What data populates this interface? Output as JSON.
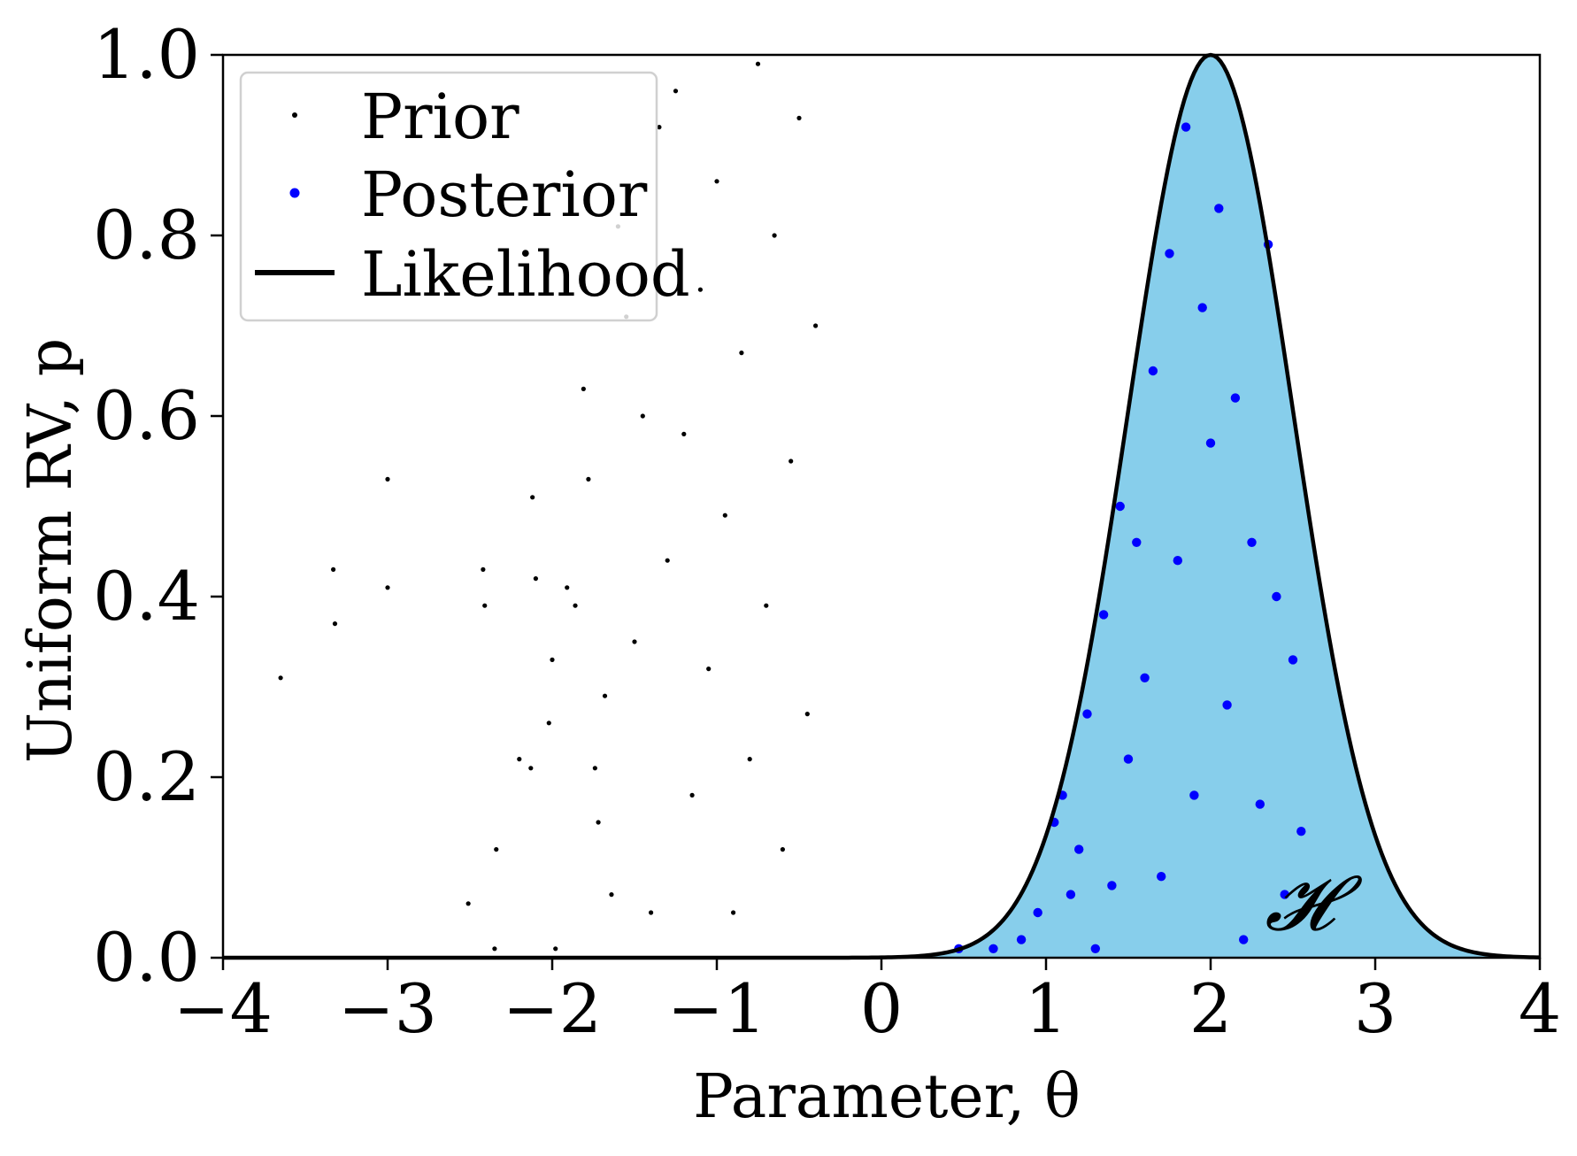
{
  "chart_data": {
    "type": "scatter",
    "title": "",
    "xlabel": "Parameter, θ",
    "ylabel": "Uniform RV, p",
    "xlim": [
      -4,
      4
    ],
    "ylim": [
      0,
      1
    ],
    "x_ticks": [
      -4,
      -3,
      -2,
      -1,
      0,
      1,
      2,
      3,
      4
    ],
    "x_tick_labels": [
      "−4",
      "−3",
      "−2",
      "−1",
      "0",
      "1",
      "2",
      "3",
      "4"
    ],
    "y_ticks": [
      0,
      0.2,
      0.4,
      0.6,
      0.8,
      1
    ],
    "y_tick_labels": [
      "0.0",
      "0.2",
      "0.4",
      "0.6",
      "0.8",
      "1.0"
    ],
    "grid": false,
    "legend_position": "top-left",
    "legend": [
      {
        "label": "Prior",
        "marker": "small-dot",
        "color": "#000000"
      },
      {
        "label": "Posterior",
        "marker": "dot",
        "color": "#0000ff"
      },
      {
        "label": "Likelihood",
        "marker": "line",
        "color": "#000000"
      }
    ],
    "region_label": "𝓗",
    "likelihood": {
      "name": "Likelihood",
      "color": "#000000",
      "fill_color": "#87ceeb",
      "mu": 2.0,
      "sigma": 0.5,
      "peak": 1.0
    },
    "series": [
      {
        "name": "Prior",
        "color": "#000000",
        "points": [
          [
            -3.65,
            0.31
          ],
          [
            -3.33,
            0.43
          ],
          [
            -3.32,
            0.37
          ],
          [
            -3.0,
            0.53
          ],
          [
            -3.0,
            0.41
          ],
          [
            -2.51,
            0.06
          ],
          [
            -2.42,
            0.43
          ],
          [
            -2.41,
            0.39
          ],
          [
            -2.35,
            0.01
          ],
          [
            -2.34,
            0.12
          ],
          [
            -2.2,
            0.22
          ],
          [
            -2.13,
            0.21
          ],
          [
            -2.12,
            0.51
          ],
          [
            -2.1,
            0.42
          ],
          [
            -2.02,
            0.26
          ],
          [
            -2.0,
            0.33
          ],
          [
            -1.98,
            0.01
          ],
          [
            -1.91,
            0.41
          ],
          [
            -1.86,
            0.39
          ],
          [
            -1.81,
            0.63
          ],
          [
            -1.78,
            0.53
          ],
          [
            -1.74,
            0.21
          ],
          [
            -1.72,
            0.15
          ],
          [
            -1.68,
            0.29
          ],
          [
            -1.64,
            0.07
          ],
          [
            -1.6,
            0.81
          ],
          [
            -1.55,
            0.71
          ],
          [
            -1.5,
            0.35
          ],
          [
            -1.45,
            0.6
          ],
          [
            -1.4,
            0.05
          ],
          [
            -1.35,
            0.92
          ],
          [
            -1.3,
            0.44
          ],
          [
            -1.25,
            0.96
          ],
          [
            -1.2,
            0.58
          ],
          [
            -1.15,
            0.18
          ],
          [
            -1.1,
            0.74
          ],
          [
            -1.05,
            0.32
          ],
          [
            -1.0,
            0.86
          ],
          [
            -0.95,
            0.49
          ],
          [
            -0.9,
            0.05
          ],
          [
            -0.85,
            0.67
          ],
          [
            -0.8,
            0.22
          ],
          [
            -0.75,
            0.99
          ],
          [
            -0.7,
            0.39
          ],
          [
            -0.65,
            0.8
          ],
          [
            -0.6,
            0.12
          ],
          [
            -0.55,
            0.55
          ],
          [
            -0.5,
            0.93
          ],
          [
            -0.45,
            0.27
          ],
          [
            -0.4,
            0.7
          ]
        ]
      },
      {
        "name": "Posterior",
        "color": "#0000ff",
        "points": [
          [
            0.47,
            0.01
          ],
          [
            0.68,
            0.01
          ],
          [
            0.85,
            0.02
          ],
          [
            0.95,
            0.05
          ],
          [
            1.05,
            0.15
          ],
          [
            1.1,
            0.18
          ],
          [
            1.15,
            0.07
          ],
          [
            1.2,
            0.12
          ],
          [
            1.25,
            0.27
          ],
          [
            1.3,
            0.01
          ],
          [
            1.35,
            0.38
          ],
          [
            1.4,
            0.08
          ],
          [
            1.45,
            0.5
          ],
          [
            1.5,
            0.22
          ],
          [
            1.55,
            0.46
          ],
          [
            1.6,
            0.31
          ],
          [
            1.65,
            0.65
          ],
          [
            1.7,
            0.09
          ],
          [
            1.75,
            0.78
          ],
          [
            1.8,
            0.44
          ],
          [
            1.85,
            0.92
          ],
          [
            1.9,
            0.18
          ],
          [
            1.95,
            0.72
          ],
          [
            2.0,
            0.57
          ],
          [
            2.05,
            0.83
          ],
          [
            2.1,
            0.28
          ],
          [
            2.15,
            0.62
          ],
          [
            2.2,
            0.02
          ],
          [
            2.25,
            0.46
          ],
          [
            2.3,
            0.17
          ],
          [
            2.35,
            0.79
          ],
          [
            2.4,
            0.4
          ],
          [
            2.45,
            0.07
          ],
          [
            2.5,
            0.33
          ],
          [
            2.55,
            0.14
          ]
        ]
      }
    ]
  }
}
